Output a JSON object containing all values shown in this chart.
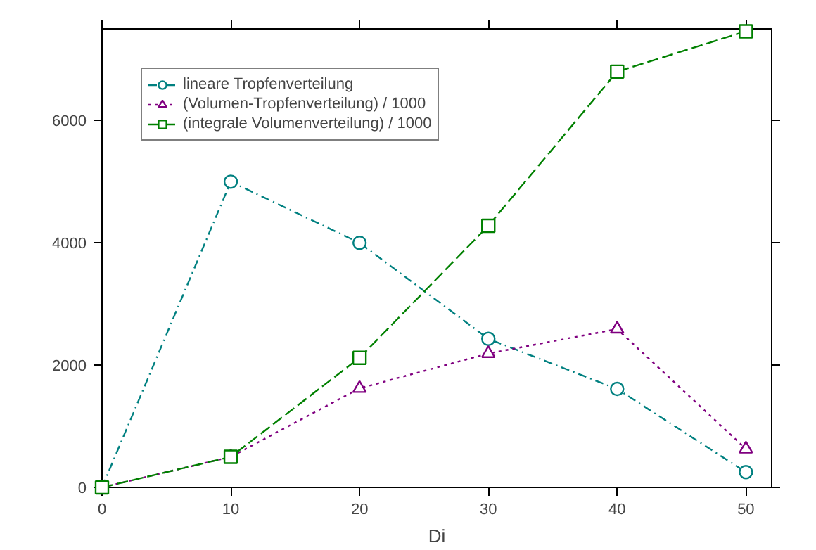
{
  "chart_data": {
    "type": "line",
    "xlabel": "Di",
    "x": [
      0,
      10,
      20,
      30,
      40,
      50
    ],
    "series": [
      {
        "name": "lineare Tropfenverteilung",
        "color": "#008080",
        "values": [
          0,
          5000,
          4000,
          2430,
          1610,
          250
        ],
        "marker": "circle",
        "line_style": "dashdot"
      },
      {
        "name": "(Volumen-Tropfenverteilung) / 1000",
        "color": "#800080",
        "values": [
          0,
          500,
          1620,
          2190,
          2590,
          630
        ],
        "marker": "triangle",
        "line_style": "dotted"
      },
      {
        "name": "(integrale Volumenverteilung) / 1000",
        "color": "#008000",
        "values": [
          0,
          500,
          2120,
          4280,
          6800,
          7460
        ],
        "marker": "square",
        "line_style": "dashed"
      }
    ],
    "xlim": [
      0,
      52
    ],
    "ylim": [
      0,
      7500
    ],
    "xticks": [
      0,
      10,
      20,
      30,
      40,
      50
    ],
    "yticks": [
      0,
      2000,
      4000,
      6000
    ],
    "grid": false,
    "legend": "top left"
  }
}
